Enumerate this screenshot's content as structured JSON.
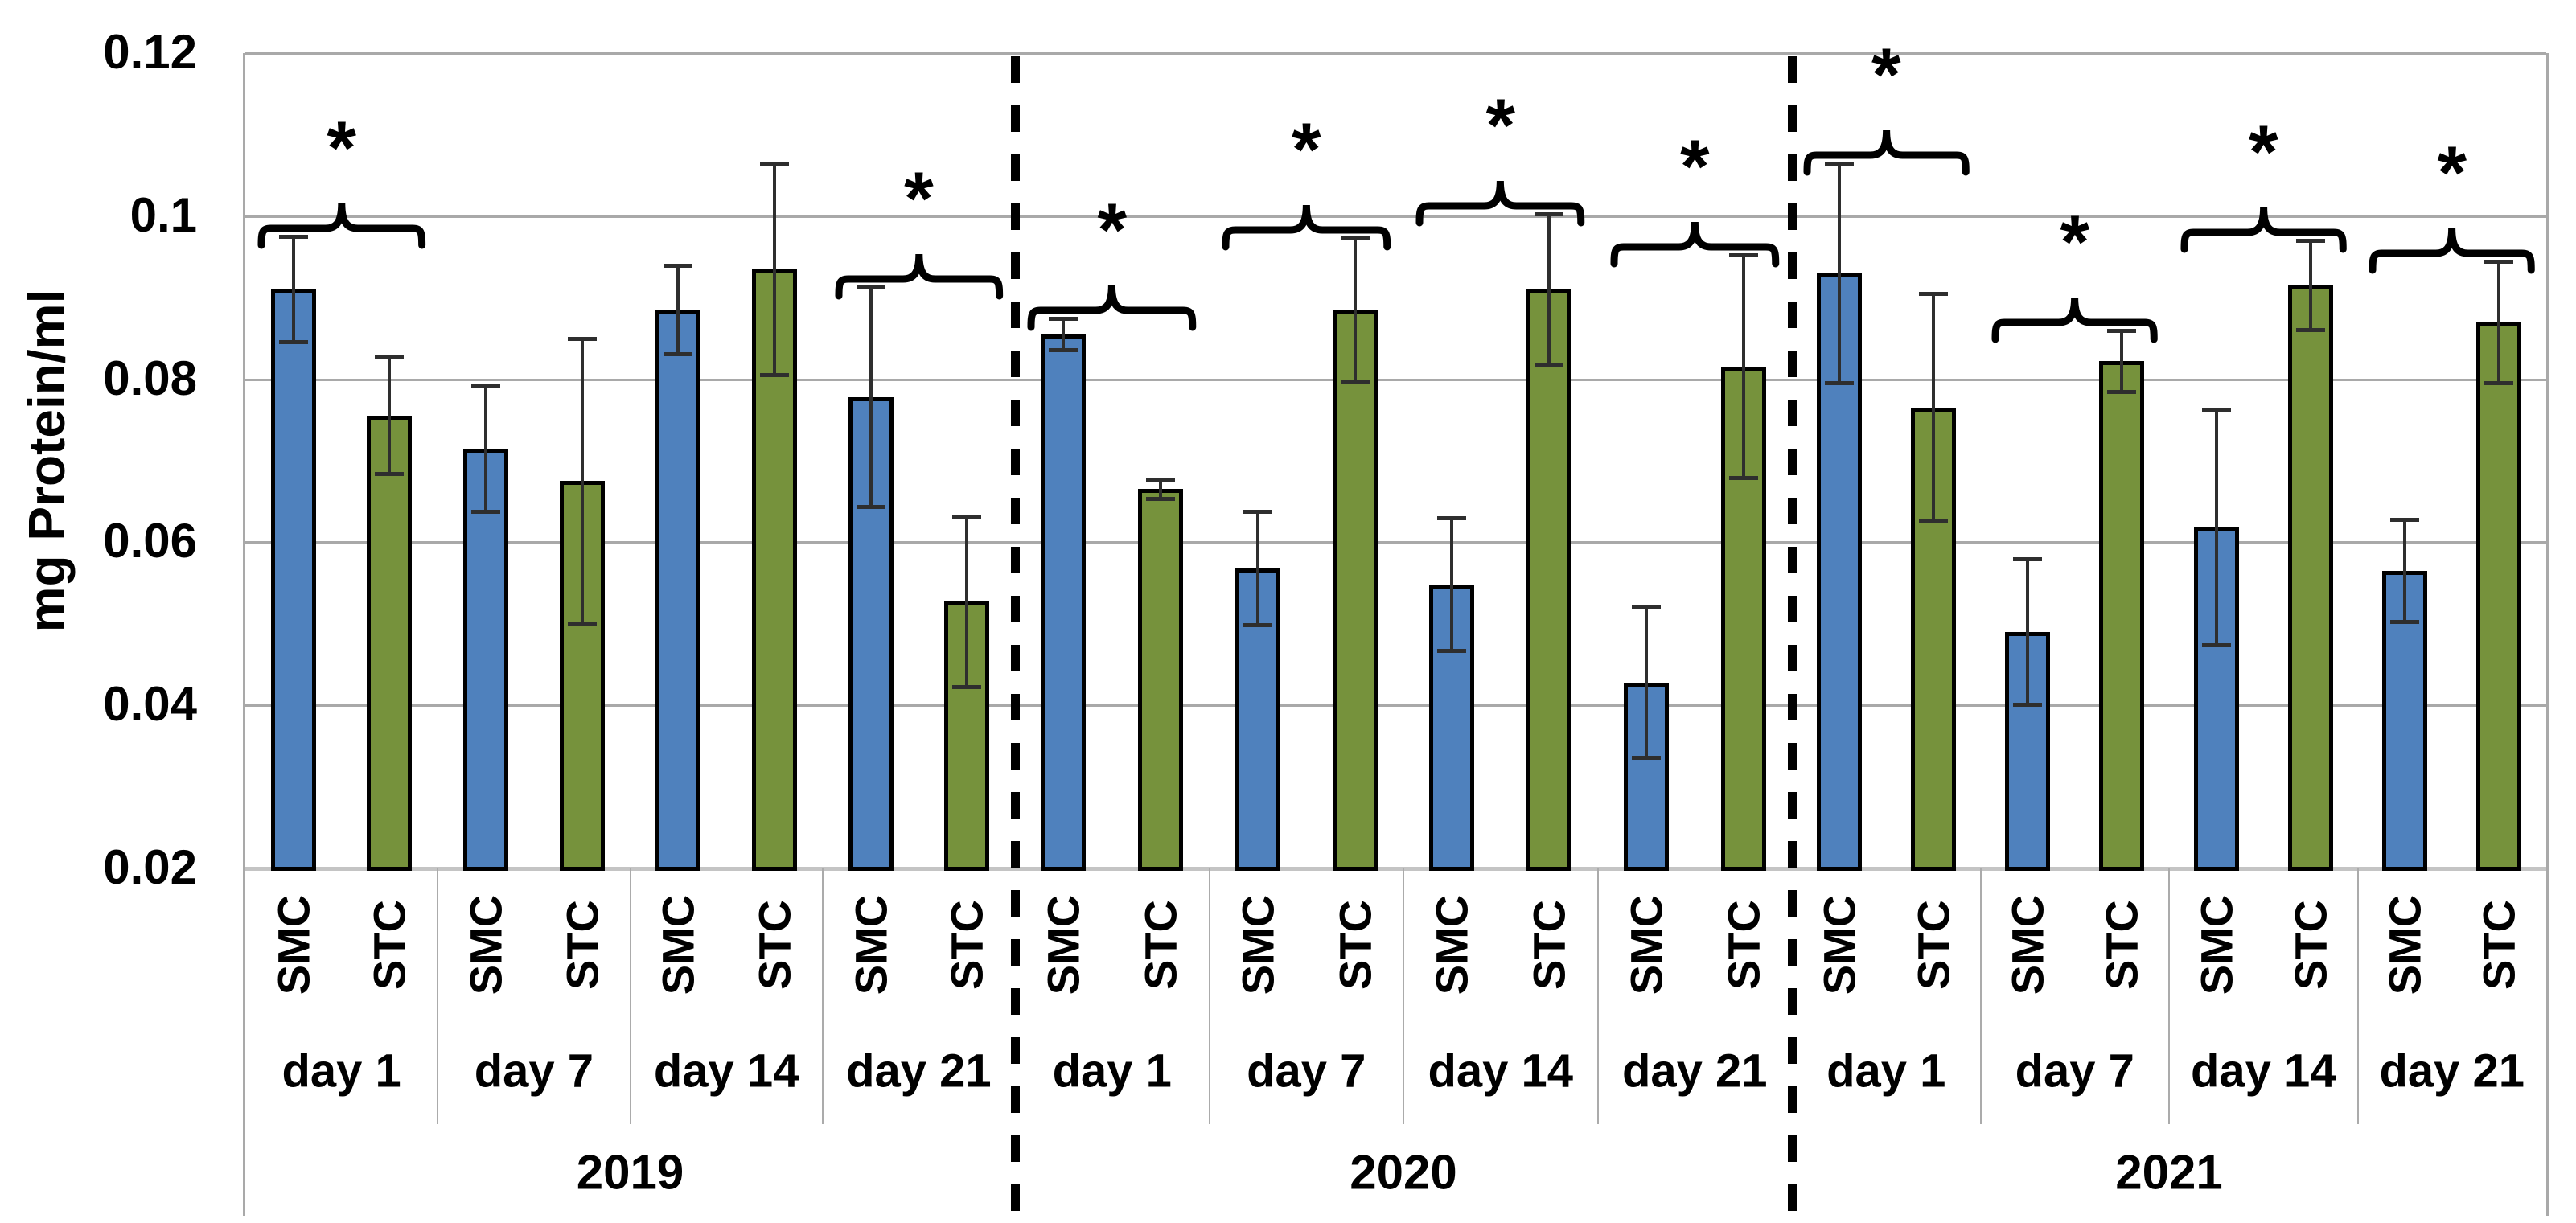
{
  "chart_data": {
    "type": "bar",
    "title": "",
    "xlabel": "",
    "ylabel": "mg Protein/ml",
    "ylim": [
      0.02,
      0.12
    ],
    "grid": true,
    "legend": "none",
    "significance_marker": "*",
    "yticks": [
      {
        "label": "0.12",
        "value": 0.12
      },
      {
        "label": "0.1",
        "value": 0.1
      },
      {
        "label": "0.08",
        "value": 0.08
      },
      {
        "label": "0.06",
        "value": 0.06
      },
      {
        "label": "0.04",
        "value": 0.04
      },
      {
        "label": "0.02",
        "value": 0.02
      }
    ],
    "series_names": [
      "SMC",
      "STC"
    ],
    "colors": {
      "SMC": "#4F81BD",
      "STC": "#76923C",
      "bar_border": "#000000"
    },
    "years": [
      {
        "label": "2019",
        "days": [
          {
            "label": "day 1",
            "significant": true,
            "bars": [
              {
                "series": "SMC",
                "value": 0.091,
                "err": 0.0065
              },
              {
                "series": "STC",
                "value": 0.0755,
                "err": 0.0072
              }
            ]
          },
          {
            "label": "day 7",
            "significant": false,
            "bars": [
              {
                "series": "SMC",
                "value": 0.0715,
                "err": 0.0078
              },
              {
                "series": "STC",
                "value": 0.0675,
                "err": 0.0175
              }
            ]
          },
          {
            "label": "day 14",
            "significant": false,
            "bars": [
              {
                "series": "SMC",
                "value": 0.0885,
                "err": 0.0055
              },
              {
                "series": "STC",
                "value": 0.0935,
                "err": 0.013
              }
            ]
          },
          {
            "label": "day 21",
            "significant": true,
            "bars": [
              {
                "series": "SMC",
                "value": 0.0778,
                "err": 0.0135
              },
              {
                "series": "STC",
                "value": 0.0527,
                "err": 0.0105
              }
            ]
          }
        ]
      },
      {
        "label": "2020",
        "days": [
          {
            "label": "day 1",
            "significant": true,
            "bars": [
              {
                "series": "SMC",
                "value": 0.0855,
                "err": 0.002
              },
              {
                "series": "STC",
                "value": 0.0665,
                "err": 0.0012
              }
            ]
          },
          {
            "label": "day 7",
            "significant": true,
            "bars": [
              {
                "series": "SMC",
                "value": 0.0568,
                "err": 0.007
              },
              {
                "series": "STC",
                "value": 0.0885,
                "err": 0.0088
              }
            ]
          },
          {
            "label": "day 14",
            "significant": true,
            "bars": [
              {
                "series": "SMC",
                "value": 0.0548,
                "err": 0.0082
              },
              {
                "series": "STC",
                "value": 0.091,
                "err": 0.0093
              }
            ]
          },
          {
            "label": "day 21",
            "significant": true,
            "bars": [
              {
                "series": "SMC",
                "value": 0.0428,
                "err": 0.0093
              },
              {
                "series": "STC",
                "value": 0.0815,
                "err": 0.0137
              }
            ]
          }
        ]
      },
      {
        "label": "2021",
        "days": [
          {
            "label": "day 1",
            "significant": true,
            "bars": [
              {
                "series": "SMC",
                "value": 0.093,
                "err": 0.0135
              },
              {
                "series": "STC",
                "value": 0.0765,
                "err": 0.014
              }
            ]
          },
          {
            "label": "day 7",
            "significant": true,
            "bars": [
              {
                "series": "SMC",
                "value": 0.049,
                "err": 0.009
              },
              {
                "series": "STC",
                "value": 0.0822,
                "err": 0.0038
              }
            ]
          },
          {
            "label": "day 14",
            "significant": true,
            "bars": [
              {
                "series": "SMC",
                "value": 0.0618,
                "err": 0.0145
              },
              {
                "series": "STC",
                "value": 0.0915,
                "err": 0.0055
              }
            ]
          },
          {
            "label": "day 21",
            "significant": true,
            "bars": [
              {
                "series": "SMC",
                "value": 0.0565,
                "err": 0.0063
              },
              {
                "series": "STC",
                "value": 0.087,
                "err": 0.0075
              }
            ]
          }
        ]
      }
    ]
  }
}
